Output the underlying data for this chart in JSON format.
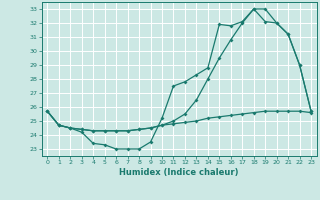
{
  "xlabel": "Humidex (Indice chaleur)",
  "bg_color": "#cce8e4",
  "grid_color": "#ffffff",
  "line_color": "#1a7a6e",
  "xlim": [
    -0.5,
    23.5
  ],
  "ylim": [
    22.5,
    33.5
  ],
  "yticks": [
    23,
    24,
    25,
    26,
    27,
    28,
    29,
    30,
    31,
    32,
    33
  ],
  "xticks": [
    0,
    1,
    2,
    3,
    4,
    5,
    6,
    7,
    8,
    9,
    10,
    11,
    12,
    13,
    14,
    15,
    16,
    17,
    18,
    19,
    20,
    21,
    22,
    23
  ],
  "series": {
    "line1": [
      25.7,
      24.7,
      24.5,
      24.2,
      23.4,
      23.3,
      23.0,
      23.0,
      23.0,
      23.5,
      25.2,
      27.5,
      27.8,
      28.3,
      28.8,
      31.9,
      31.8,
      32.1,
      33.0,
      32.1,
      32.0,
      31.2,
      29.0,
      25.7
    ],
    "line2": [
      25.7,
      24.7,
      24.5,
      24.4,
      24.3,
      24.3,
      24.3,
      24.3,
      24.4,
      24.5,
      24.7,
      25.0,
      25.5,
      26.5,
      28.0,
      29.5,
      30.8,
      32.0,
      33.0,
      33.0,
      32.0,
      31.2,
      29.0,
      25.7
    ],
    "line3": [
      25.7,
      24.7,
      24.5,
      24.4,
      24.3,
      24.3,
      24.3,
      24.3,
      24.4,
      24.5,
      24.7,
      24.8,
      24.9,
      25.0,
      25.2,
      25.3,
      25.4,
      25.5,
      25.6,
      25.7,
      25.7,
      25.7,
      25.7,
      25.6
    ]
  }
}
